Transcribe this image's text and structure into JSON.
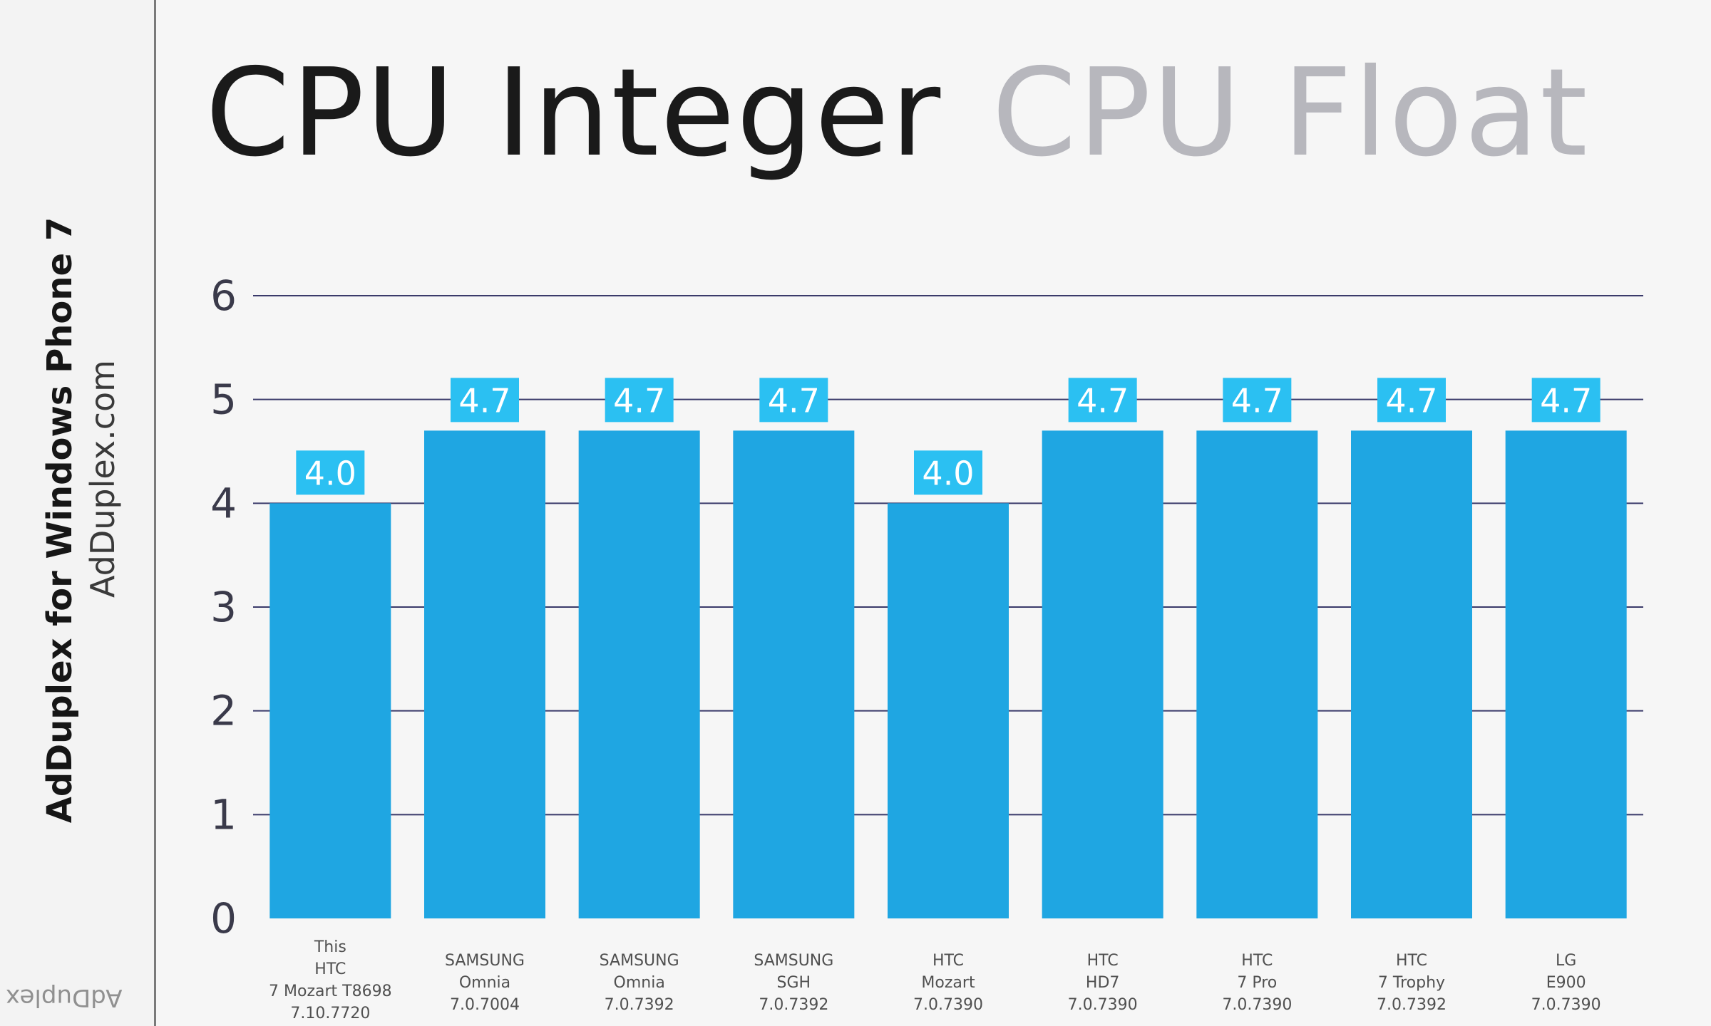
{
  "sidebar": {
    "title": "AdDuplex for Windows Phone 7",
    "url": "AdDuplex.com",
    "logo_text": "AdDuplex"
  },
  "tabs": [
    {
      "label": "CPU Integer",
      "active": true
    },
    {
      "label": "CPU Float",
      "active": false
    }
  ],
  "colors": {
    "bar": "#1fa6e2",
    "label_bg": "#2bc0f2",
    "grid": "#3a3a6a",
    "tick": "#3a3a4a"
  },
  "chart_data": {
    "type": "bar",
    "ylim": [
      0,
      6
    ],
    "yticks": [
      "0",
      "1",
      "2",
      "3",
      "4",
      "5",
      "6"
    ],
    "categories": [
      [
        "This",
        "HTC",
        "7 Mozart T8698",
        "7.10.7720"
      ],
      [
        "SAMSUNG",
        "Omnia",
        "7.0.7004"
      ],
      [
        "SAMSUNG",
        "Omnia",
        "7.0.7392"
      ],
      [
        "SAMSUNG",
        "SGH",
        "7.0.7392"
      ],
      [
        "HTC",
        "Mozart",
        "7.0.7390"
      ],
      [
        "HTC",
        "HD7",
        "7.0.7390"
      ],
      [
        "HTC",
        "7 Pro",
        "7.0.7390"
      ],
      [
        "HTC",
        "7 Trophy",
        "7.0.7392"
      ],
      [
        "LG",
        "E900",
        "7.0.7390"
      ]
    ],
    "values": [
      4.0,
      4.7,
      4.7,
      4.7,
      4.0,
      4.7,
      4.7,
      4.7,
      4.7
    ],
    "data_labels": [
      "4.0",
      "4.7",
      "4.7",
      "4.7",
      "4.0",
      "4.7",
      "4.7",
      "4.7",
      "4.7"
    ],
    "grid": true,
    "legend": "none"
  }
}
